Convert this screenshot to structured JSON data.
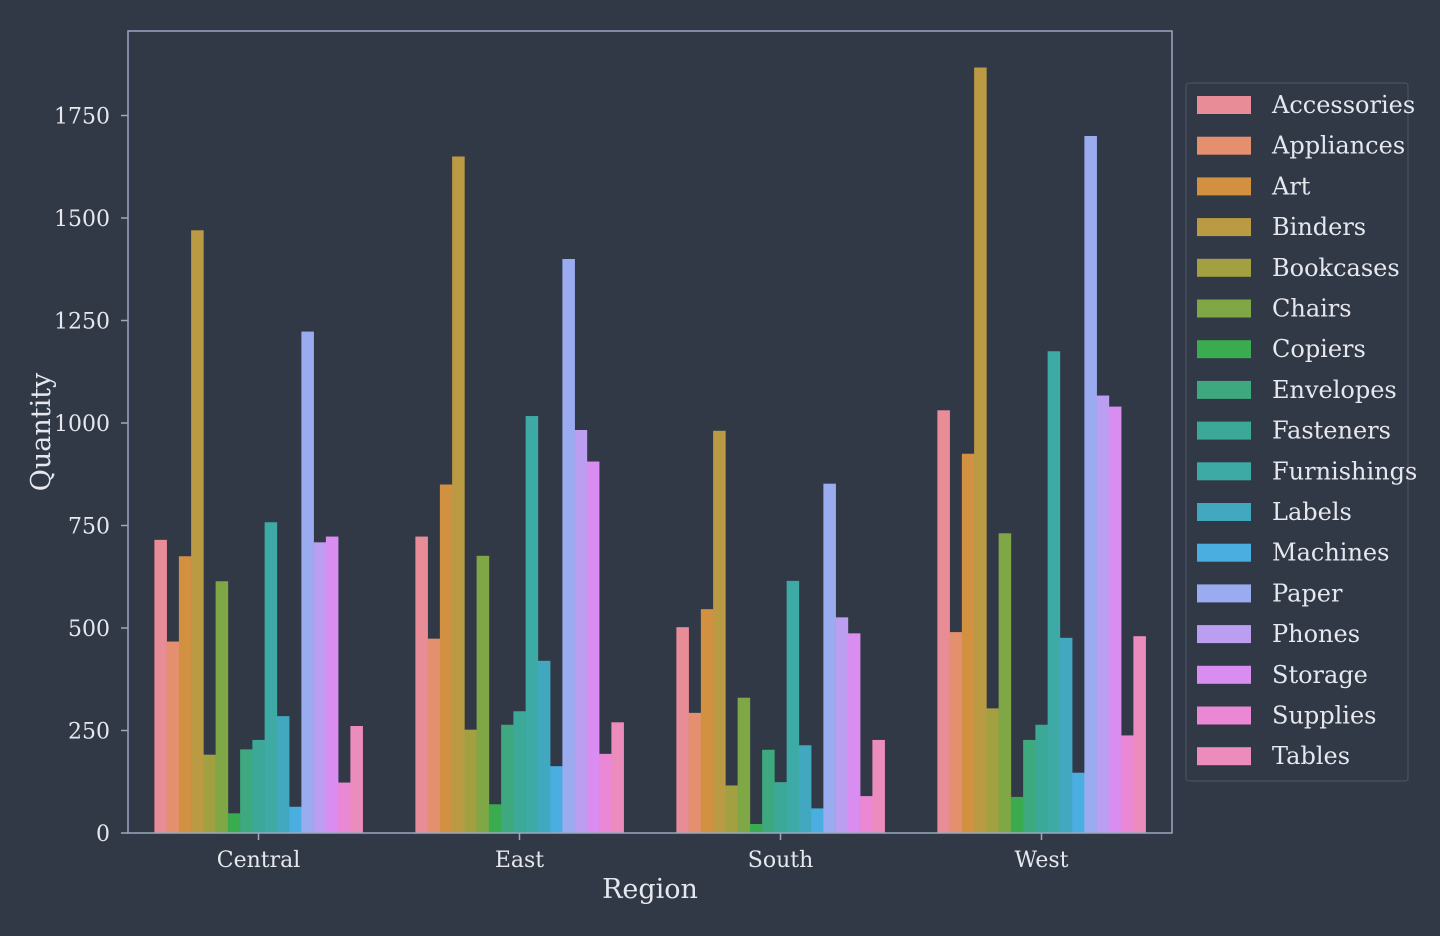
{
  "chart_data": {
    "type": "bar",
    "title": "",
    "xlabel": "Region",
    "ylabel": "Quantity",
    "ylim": [
      0,
      1950
    ],
    "yticks": [
      0,
      250,
      500,
      750,
      1000,
      1250,
      1500,
      1750
    ],
    "grid": false,
    "legend_position": "right",
    "categories": [
      "Central",
      "East",
      "South",
      "West"
    ],
    "series": [
      {
        "name": "Accessories",
        "color": "#e88c97",
        "values": [
          715,
          723,
          502,
          1031
        ]
      },
      {
        "name": "Appliances",
        "color": "#e4906f",
        "values": [
          467,
          474,
          293,
          490
        ]
      },
      {
        "name": "Art",
        "color": "#d19140",
        "values": [
          675,
          850,
          546,
          925
        ]
      },
      {
        "name": "Binders",
        "color": "#bb9a44",
        "values": [
          1470,
          1650,
          981,
          1867
        ]
      },
      {
        "name": "Bookcases",
        "color": "#a3a041",
        "values": [
          191,
          252,
          116,
          304
        ]
      },
      {
        "name": "Chairs",
        "color": "#7fa746",
        "values": [
          614,
          676,
          330,
          731
        ]
      },
      {
        "name": "Copiers",
        "color": "#3aac4f",
        "values": [
          48,
          70,
          22,
          88
        ]
      },
      {
        "name": "Envelopes",
        "color": "#3ea87e",
        "values": [
          204,
          264,
          203,
          227
        ]
      },
      {
        "name": "Fasteners",
        "color": "#3ca897",
        "values": [
          227,
          297,
          124,
          264
        ]
      },
      {
        "name": "Furnishings",
        "color": "#3eaaa6",
        "values": [
          758,
          1017,
          615,
          1175
        ]
      },
      {
        "name": "Labels",
        "color": "#41a8bf",
        "values": [
          285,
          420,
          214,
          476
        ]
      },
      {
        "name": "Machines",
        "color": "#4aaee0",
        "values": [
          64,
          163,
          60,
          147
        ]
      },
      {
        "name": "Paper",
        "color": "#9aabf0",
        "values": [
          1223,
          1400,
          852,
          1700
        ]
      },
      {
        "name": "Phones",
        "color": "#bb9ef0",
        "values": [
          709,
          983,
          526,
          1067
        ]
      },
      {
        "name": "Storage",
        "color": "#da8df0",
        "values": [
          723,
          906,
          487,
          1040
        ]
      },
      {
        "name": "Supplies",
        "color": "#ea88d5",
        "values": [
          123,
          193,
          90,
          238
        ]
      },
      {
        "name": "Tables",
        "color": "#ec8cbc",
        "values": [
          261,
          270,
          227,
          480
        ]
      }
    ]
  }
}
